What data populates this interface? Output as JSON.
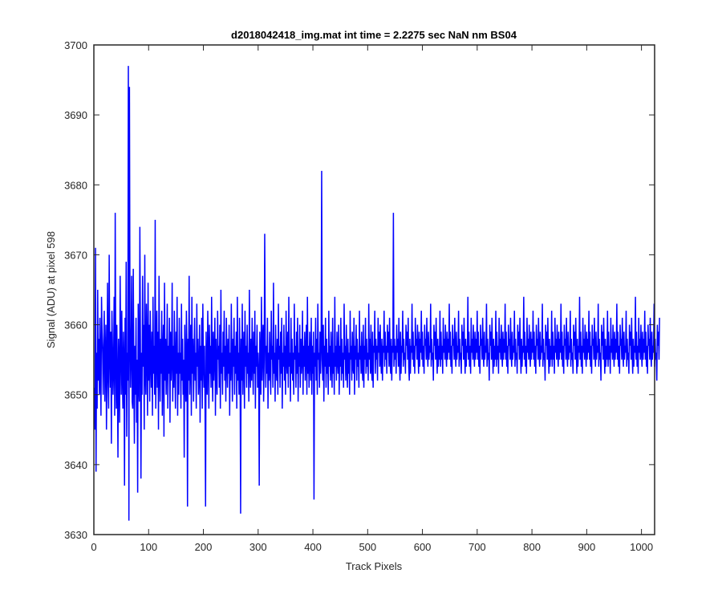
{
  "chart_data": {
    "type": "line",
    "title": "d2018042418_img.mat int time = 2.2275 sec  NaN nm BS04",
    "xlabel": "Track Pixels",
    "ylabel": "Signal (ADU) at pixel 598",
    "xlim": [
      0,
      1024
    ],
    "ylim": [
      3630,
      3700
    ],
    "xticks": [
      0,
      100,
      200,
      300,
      400,
      500,
      600,
      700,
      800,
      900,
      1000
    ],
    "yticks": [
      3630,
      3640,
      3650,
      3660,
      3670,
      3680,
      3690,
      3700
    ],
    "xtick_labels": [
      "0",
      "100",
      "200",
      "300",
      "400",
      "500",
      "600",
      "700",
      "800",
      "900",
      "1000"
    ],
    "ytick_labels": [
      "3630",
      "3640",
      "3650",
      "3660",
      "3670",
      "3680",
      "3690",
      "3700"
    ],
    "grid": false,
    "line_color": "#0000ff",
    "series": [
      {
        "x_start": 1,
        "x_step": 1,
        "values": [
          3651,
          3645,
          3671,
          3639,
          3656,
          3648,
          3665,
          3652,
          3658,
          3650,
          3661,
          3654,
          3647,
          3664,
          3659,
          3656,
          3650,
          3657,
          3662,
          3649,
          3655,
          3660,
          3645,
          3653,
          3666,
          3652,
          3648,
          3670,
          3656,
          3651,
          3659,
          3643,
          3662,
          3657,
          3650,
          3654,
          3664,
          3647,
          3676,
          3655,
          3648,
          3660,
          3652,
          3641,
          3658,
          3654,
          3646,
          3667,
          3657,
          3650,
          3662,
          3653,
          3648,
          3659,
          3655,
          3637,
          3661,
          3650,
          3669,
          3644,
          3656,
          3652,
          3697,
          3632,
          3694,
          3660,
          3651,
          3656,
          3667,
          3649,
          3648,
          3668,
          3653,
          3643,
          3657,
          3650,
          3661,
          3646,
          3655,
          3636,
          3663,
          3652,
          3649,
          3674,
          3658,
          3638,
          3656,
          3650,
          3667,
          3654,
          3660,
          3645,
          3670,
          3653,
          3650,
          3663,
          3657,
          3647,
          3666,
          3652,
          3660,
          3649,
          3662,
          3655,
          3651,
          3659,
          3647,
          3664,
          3653,
          3657,
          3650,
          3675,
          3648,
          3656,
          3662,
          3651,
          3659,
          3645,
          3667,
          3654,
          3649,
          3658,
          3653,
          3662,
          3647,
          3656,
          3660,
          3644,
          3666,
          3652,
          3658,
          3650,
          3655,
          3663,
          3648,
          3657,
          3653,
          3661,
          3646,
          3659,
          3652,
          3655,
          3666,
          3649,
          3657,
          3651,
          3662,
          3654,
          3648,
          3659,
          3653,
          3664,
          3647,
          3656,
          3650,
          3661,
          3653,
          3656,
          3648,
          3663,
          3652,
          3658,
          3650,
          3655,
          3641,
          3660,
          3653,
          3649,
          3662,
          3656,
          3634,
          3658,
          3652,
          3667,
          3650,
          3655,
          3660,
          3647,
          3664,
          3653,
          3658,
          3649,
          3655,
          3661,
          3652,
          3656,
          3648,
          3663,
          3654,
          3658,
          3650,
          3653,
          3660,
          3646,
          3657,
          3652,
          3661,
          3648,
          3663,
          3655,
          3651,
          3657,
          3649,
          3634,
          3659,
          3654,
          3650,
          3662,
          3656,
          3648,
          3660,
          3653,
          3657,
          3651,
          3664,
          3655,
          3649,
          3659,
          3652,
          3656,
          3661,
          3647,
          3658,
          3653,
          3650,
          3662,
          3655,
          3657,
          3651,
          3660,
          3648,
          3665,
          3653,
          3656,
          3650,
          3659,
          3654,
          3662,
          3652,
          3657,
          3649,
          3661,
          3655,
          3651,
          3658,
          3653,
          3660,
          3647,
          3656,
          3652,
          3663,
          3655,
          3649,
          3658,
          3654,
          3661,
          3650,
          3657,
          3653,
          3659,
          3648,
          3664,
          3652,
          3656,
          3650,
          3661,
          3655,
          3633,
          3658,
          3652,
          3663,
          3650,
          3656,
          3659,
          3648,
          3662,
          3654,
          3657,
          3651,
          3660,
          3653,
          3656,
          3649,
          3665,
          3654,
          3651,
          3658,
          3652,
          3661,
          3655,
          3650,
          3659,
          3653,
          3662,
          3648,
          3657,
          3654,
          3660,
          3651,
          3656,
          3653,
          3637,
          3659,
          3655,
          3650,
          3664,
          3652,
          3657,
          3660,
          3649,
          3655,
          3673,
          3658,
          3651,
          3657,
          3653,
          3661,
          3648,
          3656,
          3652,
          3659,
          3654,
          3650,
          3662,
          3655,
          3657,
          3651,
          3666,
          3653,
          3656,
          3649,
          3660,
          3654,
          3652,
          3658,
          3650,
          3663,
          3655,
          3657,
          3651,
          3659,
          3653,
          3661,
          3648,
          3656,
          3654,
          3660,
          3652,
          3657,
          3650,
          3662,
          3655,
          3653,
          3659,
          3651,
          3664,
          3654,
          3656,
          3649,
          3661,
          3653,
          3658,
          3652,
          3656,
          3650,
          3663,
          3655,
          3657,
          3651,
          3659,
          3653,
          3661,
          3649,
          3656,
          3654,
          3660,
          3651,
          3658,
          3653,
          3655,
          3662,
          3650,
          3657,
          3654,
          3659,
          3652,
          3656,
          3660,
          3650,
          3664,
          3653,
          3657,
          3651,
          3659,
          3655,
          3652,
          3661,
          3650,
          3657,
          3653,
          3659,
          3635,
          3656,
          3654,
          3661,
          3652,
          3658,
          3650,
          3663,
          3655,
          3656,
          3651,
          3659,
          3653,
          3657,
          3682,
          3655,
          3652,
          3660,
          3649,
          3657,
          3654,
          3661,
          3651,
          3658,
          3653,
          3656,
          3650,
          3662,
          3654,
          3657,
          3652,
          3659,
          3655,
          3651,
          3661,
          3653,
          3656,
          3650,
          3664,
          3654,
          3657,
          3652,
          3659,
          3655,
          3653,
          3660,
          3650,
          3657,
          3654,
          3661,
          3652,
          3658,
          3653,
          3656,
          3651,
          3663,
          3655,
          3657,
          3652,
          3660,
          3654,
          3651,
          3658,
          3653,
          3656,
          3650,
          3662,
          3655,
          3657,
          3652,
          3659,
          3654,
          3653,
          3661,
          3650,
          3657,
          3655,
          3660,
          3652,
          3658,
          3654,
          3656,
          3651,
          3662,
          3655,
          3657,
          3653,
          3659,
          3654,
          3652,
          3660,
          3651,
          3657,
          3655,
          3661,
          3653,
          3658,
          3654,
          3656,
          3652,
          3663,
          3655,
          3658,
          3653,
          3660,
          3654,
          3652,
          3659,
          3651,
          3657,
          3656,
          3662,
          3653,
          3658,
          3655,
          3657,
          3652,
          3661,
          3656,
          3659,
          3654,
          3660,
          3655,
          3653,
          3658,
          3652,
          3657,
          3656,
          3662,
          3654,
          3659,
          3655,
          3657,
          3653,
          3660,
          3656,
          3659,
          3654,
          3661,
          3655,
          3653,
          3658,
          3652,
          3657,
          3656,
          3676,
          3654,
          3658,
          3655,
          3657,
          3653,
          3660,
          3656,
          3658,
          3654,
          3661,
          3655,
          3652,
          3659,
          3653,
          3657,
          3656,
          3662,
          3654,
          3658,
          3655,
          3656,
          3653,
          3660,
          3657,
          3659,
          3655,
          3661,
          3654,
          3652,
          3658,
          3653,
          3657,
          3656,
          3663,
          3655,
          3659,
          3654,
          3657,
          3653,
          3661,
          3657,
          3658,
          3655,
          3660,
          3656,
          3653,
          3659,
          3654,
          3658,
          3656,
          3662,
          3655,
          3659,
          3654,
          3657,
          3653,
          3660,
          3657,
          3658,
          3655,
          3661,
          3656,
          3654,
          3659,
          3655,
          3657,
          3656,
          3663,
          3654,
          3658,
          3655,
          3656,
          3652,
          3660,
          3657,
          3659,
          3655,
          3661,
          3656,
          3653,
          3658,
          3654,
          3657,
          3655,
          3662,
          3654,
          3659,
          3655,
          3657,
          3653,
          3661,
          3656,
          3658,
          3655,
          3660,
          3656,
          3654,
          3659,
          3655,
          3658,
          3656,
          3663,
          3655,
          3659,
          3654,
          3657,
          3653,
          3660,
          3657,
          3658,
          3655,
          3661,
          3656,
          3654,
          3659,
          3655,
          3657,
          3656,
          3662,
          3654,
          3658,
          3655,
          3656,
          3653,
          3660,
          3657,
          3659,
          3655,
          3661,
          3656,
          3653,
          3658,
          3654,
          3657,
          3656,
          3664,
          3655,
          3659,
          3654,
          3657,
          3653,
          3661,
          3656,
          3658,
          3655,
          3660,
          3656,
          3654,
          3659,
          3655,
          3658,
          3656,
          3662,
          3655,
          3659,
          3654,
          3657,
          3653,
          3660,
          3657,
          3658,
          3655,
          3661,
          3656,
          3654,
          3659,
          3655,
          3657,
          3656,
          3663,
          3654,
          3658,
          3655,
          3656,
          3652,
          3660,
          3657,
          3659,
          3655,
          3661,
          3656,
          3653,
          3658,
          3654,
          3657,
          3655,
          3662,
          3654,
          3659,
          3655,
          3657,
          3653,
          3661,
          3656,
          3658,
          3655,
          3660,
          3656,
          3654,
          3659,
          3655,
          3658,
          3656,
          3663,
          3655,
          3659,
          3654,
          3657,
          3653,
          3660,
          3657,
          3658,
          3655,
          3661,
          3656,
          3654,
          3659,
          3655,
          3657,
          3656,
          3662,
          3654,
          3658,
          3655,
          3656,
          3653,
          3660,
          3657,
          3659,
          3655,
          3661,
          3656,
          3653,
          3658,
          3654,
          3657,
          3656,
          3664,
          3655,
          3659,
          3654,
          3657,
          3653,
          3661,
          3656,
          3658,
          3655,
          3660,
          3656,
          3654,
          3659,
          3655,
          3658,
          3656,
          3662,
          3655,
          3659,
          3654,
          3657,
          3653,
          3660,
          3657,
          3658,
          3655,
          3661,
          3656,
          3654,
          3659,
          3655,
          3657,
          3656,
          3663,
          3654,
          3658,
          3655,
          3656,
          3652,
          3660,
          3657,
          3659,
          3655,
          3661,
          3656,
          3653,
          3658,
          3654,
          3657,
          3655,
          3662,
          3654,
          3659,
          3655,
          3657,
          3653,
          3661,
          3656,
          3658,
          3655,
          3660,
          3656,
          3654,
          3659,
          3655,
          3658,
          3656,
          3663,
          3655,
          3659,
          3654,
          3657,
          3653,
          3660,
          3657,
          3658,
          3655,
          3661,
          3656,
          3654,
          3659,
          3655,
          3657,
          3656,
          3662,
          3654,
          3658,
          3655,
          3656,
          3653,
          3660,
          3657,
          3659,
          3655,
          3661,
          3656,
          3653,
          3658,
          3654,
          3657,
          3656,
          3664,
          3655,
          3659,
          3654,
          3657,
          3653,
          3661,
          3656,
          3658,
          3655,
          3660,
          3656,
          3654,
          3659,
          3655,
          3658,
          3656,
          3662,
          3655,
          3659,
          3654,
          3657,
          3653,
          3660,
          3657,
          3658,
          3655,
          3661,
          3656,
          3654,
          3659,
          3655,
          3657,
          3656,
          3663,
          3654,
          3658,
          3655,
          3656,
          3652,
          3660,
          3657,
          3659,
          3655,
          3661,
          3656,
          3653,
          3658,
          3654,
          3657,
          3655,
          3662,
          3654,
          3659,
          3655,
          3657,
          3653,
          3661,
          3656,
          3658,
          3655,
          3660,
          3656,
          3654,
          3659,
          3655,
          3658,
          3656,
          3663,
          3655,
          3659,
          3654,
          3657,
          3653,
          3660,
          3657,
          3658,
          3655,
          3661,
          3656,
          3654,
          3659,
          3655,
          3657,
          3656,
          3662,
          3654,
          3658,
          3655,
          3656,
          3653,
          3660,
          3657,
          3659,
          3655,
          3661,
          3656,
          3653,
          3658,
          3654,
          3657,
          3656,
          3664,
          3655,
          3659,
          3654,
          3657,
          3653,
          3661,
          3656,
          3658,
          3655,
          3660,
          3656,
          3654,
          3659,
          3655,
          3658,
          3656,
          3662,
          3655,
          3659,
          3654,
          3657,
          3653,
          3660,
          3657,
          3658,
          3655,
          3661,
          3656,
          3654,
          3659,
          3655,
          3657,
          3656,
          3663,
          3654,
          3658,
          3655,
          3656,
          3652,
          3660,
          3657,
          3659,
          3655,
          3661
        ]
      }
    ]
  }
}
